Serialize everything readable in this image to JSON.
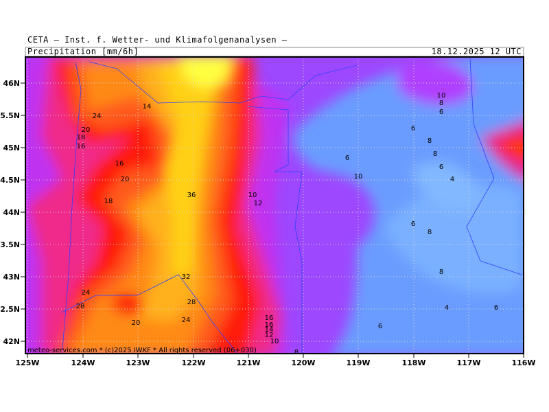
{
  "header": {
    "title": "CETA — Inst. f. Wetter- und Klimafolgenanalysen —",
    "field": "Precipitation [mm/6h]",
    "time": "18.12.2025 12 UTC"
  },
  "lat_labels": [
    "46N",
    "45.5N",
    "45N",
    "44.5N",
    "44N",
    "43.5N",
    "43N",
    "42.5N",
    "42N"
  ],
  "lon_labels": [
    "125W",
    "124W",
    "123W",
    "122W",
    "121W",
    "120W",
    "119W",
    "118W",
    "117W",
    "116W"
  ],
  "contour_labels": [
    "24",
    "20",
    "18",
    "16",
    "14",
    "16",
    "20",
    "18",
    "36",
    "10",
    "12",
    "32",
    "28",
    "24",
    "24",
    "28",
    "20",
    "16",
    "16",
    "14",
    "12",
    "10",
    "8",
    "10",
    "8",
    "6",
    "6",
    "8",
    "8",
    "6",
    "10",
    "6",
    "4",
    "6",
    "8",
    "8",
    "4",
    "6",
    "6"
  ],
  "footer": "meteo-services.com * (c)2025 IWKF * All rights reserved (06+030)"
}
